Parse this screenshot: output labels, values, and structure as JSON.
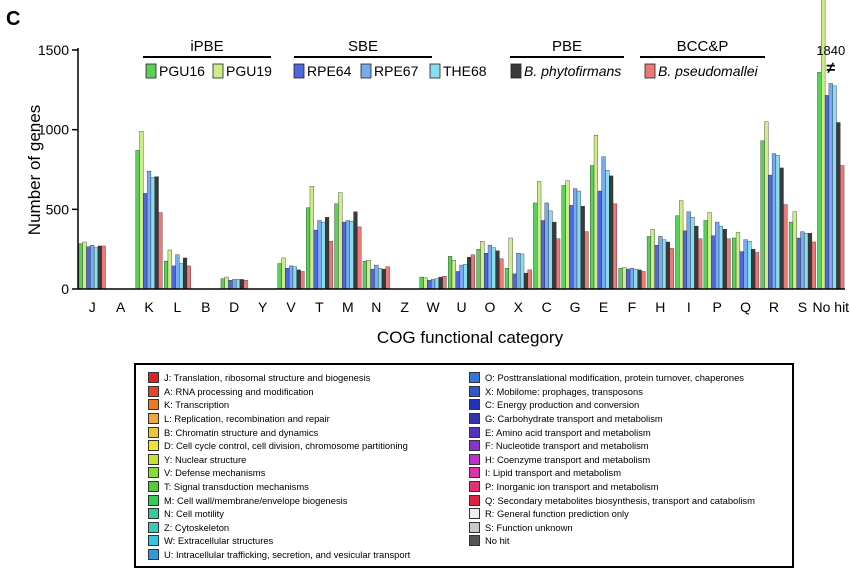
{
  "panel_label": "C",
  "chart_data": {
    "type": "bar",
    "ylabel": "Number of genes",
    "xlabel": "COG functional category",
    "ylim": [
      0,
      1500
    ],
    "yticks": [
      0,
      500,
      1000,
      1500
    ],
    "categories": [
      "J",
      "A",
      "K",
      "L",
      "B",
      "D",
      "Y",
      "V",
      "T",
      "M",
      "N",
      "Z",
      "W",
      "U",
      "O",
      "X",
      "C",
      "G",
      "E",
      "F",
      "H",
      "I",
      "P",
      "Q",
      "R",
      "S",
      "No hit"
    ],
    "axis_break": {
      "category": "No hit",
      "label": "1840",
      "symbol": "≠"
    },
    "groups": [
      {
        "label": "iPBE",
        "series": [
          "PGU16",
          "PGU19"
        ]
      },
      {
        "label": "SBE",
        "series": [
          "RPE64",
          "RPE67",
          "THE68"
        ]
      },
      {
        "label": "PBE",
        "series": [
          "B. phytofirmans"
        ]
      },
      {
        "label": "BCC&P",
        "series": [
          "B. pseudomallei"
        ]
      }
    ],
    "series": [
      {
        "name": "PGU16",
        "color": "#5ad05a",
        "values": [
          285,
          0,
          870,
          175,
          2,
          65,
          0,
          160,
          510,
          535,
          175,
          0,
          75,
          205,
          250,
          130,
          540,
          650,
          775,
          130,
          330,
          460,
          430,
          320,
          930,
          420,
          1360
        ]
      },
      {
        "name": "PGU19",
        "color": "#ccee88",
        "values": [
          295,
          0,
          990,
          245,
          2,
          75,
          0,
          195,
          645,
          605,
          180,
          0,
          70,
          180,
          300,
          320,
          675,
          680,
          965,
          135,
          375,
          555,
          480,
          355,
          1050,
          485,
          1840
        ]
      },
      {
        "name": "RPE64",
        "color": "#4f66dd",
        "values": [
          265,
          0,
          600,
          145,
          2,
          55,
          0,
          130,
          370,
          420,
          125,
          0,
          55,
          110,
          225,
          95,
          430,
          525,
          615,
          125,
          275,
          365,
          335,
          235,
          715,
          320,
          1215
        ]
      },
      {
        "name": "RPE67",
        "color": "#77aaee",
        "values": [
          275,
          0,
          740,
          215,
          2,
          60,
          0,
          145,
          430,
          430,
          150,
          0,
          60,
          150,
          275,
          225,
          540,
          630,
          830,
          130,
          330,
          485,
          420,
          310,
          850,
          360,
          1290
        ]
      },
      {
        "name": "THE68",
        "color": "#88ddee",
        "values": [
          260,
          0,
          700,
          160,
          2,
          60,
          0,
          140,
          420,
          425,
          130,
          0,
          65,
          155,
          260,
          220,
          490,
          615,
          745,
          125,
          310,
          450,
          395,
          300,
          840,
          350,
          1275
        ]
      },
      {
        "name": "B. phytofirmans",
        "color": "#3a3a3a",
        "values": [
          270,
          0,
          705,
          195,
          2,
          60,
          0,
          120,
          450,
          485,
          125,
          0,
          75,
          200,
          240,
          100,
          420,
          520,
          710,
          120,
          295,
          395,
          375,
          250,
          760,
          350,
          1045
        ]
      },
      {
        "name": "B. pseudomallei",
        "color": "#ee7777",
        "values": [
          270,
          0,
          480,
          145,
          2,
          55,
          0,
          110,
          300,
          390,
          140,
          0,
          80,
          215,
          190,
          120,
          315,
          360,
          535,
          110,
          255,
          315,
          315,
          230,
          530,
          295,
          775
        ]
      }
    ]
  },
  "legend": {
    "col1": [
      {
        "text": "J: Translation, ribosomal structure and biogenesis",
        "color": "#dd2222"
      },
      {
        "text": "A: RNA processing and modification",
        "color": "#e6452a"
      },
      {
        "text": "K: Transcription",
        "color": "#ee7a1e"
      },
      {
        "text": "L: Replication, recombination and repair",
        "color": "#f2a640"
      },
      {
        "text": "B: Chromatin structure and dynamics",
        "color": "#f0c33a"
      },
      {
        "text": "D: Cell cycle control, cell division, chromosome partitioning",
        "color": "#eee233"
      },
      {
        "text": "Y: Nuclear structure",
        "color": "#c4e233"
      },
      {
        "text": "V: Defense mechanisms",
        "color": "#88dd33"
      },
      {
        "text": "T: Signal transduction mechanisms",
        "color": "#55cc33"
      },
      {
        "text": "M: Cell wall/membrane/envelope biogenesis",
        "color": "#33cc55"
      },
      {
        "text": "N: Cell motility",
        "color": "#33cc99"
      },
      {
        "text": "Z: Cytoskeleton",
        "color": "#33ccbb"
      },
      {
        "text": "W: Extracellular structures",
        "color": "#33c4e2"
      },
      {
        "text": "U: Intracellular trafficking, secretion, and vesicular transport",
        "color": "#3399dd"
      }
    ],
    "col2": [
      {
        "text": "O: Posttranslational modification, protein turnover, chaperones",
        "color": "#3377dd"
      },
      {
        "text": "X: Mobilome: prophages, transposons",
        "color": "#3355cc"
      },
      {
        "text": "C: Energy production and conversion",
        "color": "#2233bb"
      },
      {
        "text": "G: Carbohydrate transport and metabolism",
        "color": "#3333aa"
      },
      {
        "text": "E: Amino acid transport and metabolism",
        "color": "#5533bb"
      },
      {
        "text": "F: Nucleotide transport and metabolism",
        "color": "#8833cc"
      },
      {
        "text": "H: Coenzyme transport and metabolism",
        "color": "#bb33cc"
      },
      {
        "text": "I: Lipid transport and metabolism",
        "color": "#dd33aa"
      },
      {
        "text": "P: Inorganic ion transport and metabolism",
        "color": "#dd3377"
      },
      {
        "text": "Q: Secondary metabolites biosynthesis, transport and catabolism",
        "color": "#dd2244"
      },
      {
        "text": "R: General function prediction only",
        "color": "#f0f0f0"
      },
      {
        "text": "S: Function unknown",
        "color": "#c8c8c8"
      },
      {
        "text": "No hit",
        "color": "#555555"
      }
    ]
  }
}
